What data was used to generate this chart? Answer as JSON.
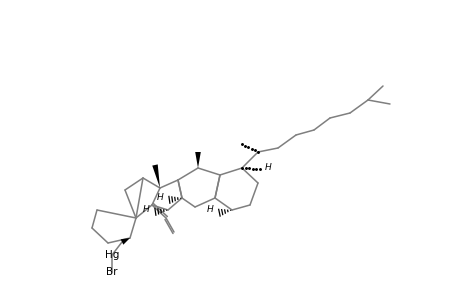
{
  "bg_color": "#ffffff",
  "line_color": "#7f7f7f",
  "bold_color": "#000000",
  "text_color": "#000000",
  "lw": 1.1,
  "figsize": [
    4.6,
    3.0
  ],
  "dpi": 100,
  "xlim": [
    0,
    460
  ],
  "ylim": [
    0,
    300
  ]
}
